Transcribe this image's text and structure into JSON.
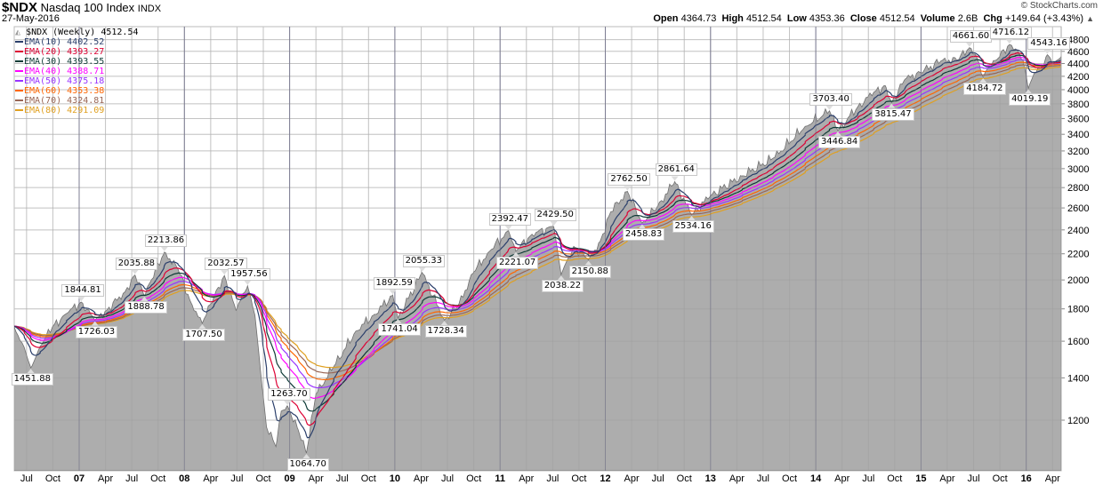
{
  "header": {
    "symbol": "$NDX",
    "name": "Nasdaq 100 Index",
    "exchange": "INDX",
    "date": "27-May-2016",
    "copyright": "© StockCharts.com",
    "open_label": "Open",
    "open": "4364.73",
    "high_label": "High",
    "high": "4512.54",
    "low_label": "Low",
    "low": "4353.36",
    "close_label": "Close",
    "close": "4512.54",
    "volume_label": "Volume",
    "volume": "2.6B",
    "chg_label": "Chg",
    "chg": "+149.64 (+3.43%)",
    "chg_icon": "up-triangle"
  },
  "legend": {
    "price": "$NDX (Weekly) 4512.54",
    "emas": [
      {
        "label": "EMA(10) 4402.52",
        "color": "#2b3f6b",
        "period": 10
      },
      {
        "label": "EMA(20) 4393.27",
        "color": "#dd0033",
        "period": 20
      },
      {
        "label": "EMA(30) 4393.55",
        "color": "#0e3b36",
        "period": 30
      },
      {
        "label": "EMA(40) 4388.71",
        "color": "#ff00ff",
        "period": 40
      },
      {
        "label": "EMA(50) 4375.18",
        "color": "#9933ff",
        "period": 50
      },
      {
        "label": "EMA(60) 4353.38",
        "color": "#ff6600",
        "period": 60
      },
      {
        "label": "EMA(70) 4324.81",
        "color": "#996655",
        "period": 70
      },
      {
        "label": "EMA(80) 4291.09",
        "color": "#e0a020",
        "period": 80
      }
    ]
  },
  "chart_data": {
    "type": "area",
    "title": "$NDX Nasdaq 100 Index INDX (Weekly)",
    "y_scale": "log",
    "ylim": [
      1000,
      5000
    ],
    "y_ticks": [
      1200,
      1400,
      1600,
      1800,
      2000,
      2200,
      2400,
      2600,
      2800,
      3000,
      3200,
      3400,
      3600,
      3800,
      4000,
      4200,
      4400,
      4600,
      4800
    ],
    "x_start": 2006.5,
    "x_step": 0.25,
    "x_ticks": [
      "Jul",
      "Oct",
      "07",
      "Apr",
      "Jul",
      "Oct",
      "08",
      "Apr",
      "Jul",
      "Oct",
      "09",
      "Apr",
      "Jul",
      "Oct",
      "10",
      "Apr",
      "Jul",
      "Oct",
      "11",
      "Apr",
      "Jul",
      "Oct",
      "12",
      "Apr",
      "Jul",
      "Oct",
      "13",
      "Apr",
      "Jul",
      "Oct",
      "14",
      "Apr",
      "Jul",
      "Oct",
      "15",
      "Apr",
      "Jul",
      "Oct",
      "16",
      "Apr"
    ],
    "fill_color": "#adadad",
    "series_anchors": [
      [
        2006.38,
        1690
      ],
      [
        2006.48,
        1560
      ],
      [
        2006.63,
        1570
      ],
      [
        2006.75,
        1690
      ],
      [
        2006.88,
        1770
      ],
      [
        2007.26,
        1790
      ],
      [
        2007.43,
        1910
      ],
      [
        2007.68,
        1990
      ],
      [
        2007.94,
        2080
      ],
      [
        2008.07,
        1830
      ],
      [
        2008.28,
        1880
      ],
      [
        2008.49,
        1790
      ],
      [
        2008.67,
        1760
      ],
      [
        2008.74,
        1350
      ],
      [
        2008.78,
        1170
      ],
      [
        2008.87,
        1090
      ],
      [
        2008.92,
        1240
      ],
      [
        2009.08,
        1160
      ],
      [
        2009.25,
        1320
      ],
      [
        2009.42,
        1460
      ],
      [
        2009.63,
        1660
      ],
      [
        2009.8,
        1760
      ],
      [
        2010.6,
        1820
      ],
      [
        2010.75,
        2060
      ],
      [
        2010.9,
        2220
      ],
      [
        2011.3,
        2360
      ],
      [
        2011.7,
        2260
      ],
      [
        2011.95,
        2300
      ],
      [
        2012.05,
        2560
      ],
      [
        2012.5,
        2620
      ],
      [
        2013.0,
        2720
      ],
      [
        2013.3,
        2920
      ],
      [
        2013.6,
        3120
      ],
      [
        2013.9,
        3500
      ],
      [
        2014.4,
        3760
      ],
      [
        2014.55,
        3960
      ],
      [
        2014.66,
        4060
      ],
      [
        2014.85,
        4160
      ],
      [
        2015.0,
        4260
      ],
      [
        2015.2,
        4450
      ],
      [
        2015.35,
        4460
      ],
      [
        2015.52,
        4540
      ],
      [
        2015.65,
        4350
      ],
      [
        2015.72,
        4460
      ],
      [
        2015.9,
        4640
      ],
      [
        2015.97,
        4450
      ],
      [
        2016.08,
        4260
      ],
      [
        2016.15,
        4350
      ],
      [
        2016.27,
        4420
      ],
      [
        2016.33,
        4512.54
      ]
    ],
    "annotations": [
      {
        "t": 2006.54,
        "value": 1451.88,
        "label": "1451.88",
        "pos": "below"
      },
      {
        "t": 2007.02,
        "value": 1844.81,
        "label": "1844.81",
        "pos": "above"
      },
      {
        "t": 2007.15,
        "value": 1726.03,
        "label": "1726.03",
        "pos": "below"
      },
      {
        "t": 2007.53,
        "value": 2035.88,
        "label": "2035.88",
        "pos": "above"
      },
      {
        "t": 2007.62,
        "value": 1888.78,
        "label": "1888.78",
        "pos": "below"
      },
      {
        "t": 2007.81,
        "value": 2213.86,
        "label": "2213.86",
        "pos": "above"
      },
      {
        "t": 2008.17,
        "value": 1707.5,
        "label": "1707.50",
        "pos": "below"
      },
      {
        "t": 2008.38,
        "value": 2032.57,
        "label": "2032.57",
        "pos": "above"
      },
      {
        "t": 2008.6,
        "value": 1957.56,
        "label": "1957.56",
        "pos": "above"
      },
      {
        "t": 2008.98,
        "value": 1263.7,
        "label": "1263.70",
        "pos": "above"
      },
      {
        "t": 2009.16,
        "value": 1064.7,
        "label": "1064.70",
        "pos": "below"
      },
      {
        "t": 2009.98,
        "value": 1892.59,
        "label": "1892.59",
        "pos": "above"
      },
      {
        "t": 2010.03,
        "value": 1741.04,
        "label": "1741.04",
        "pos": "below"
      },
      {
        "t": 2010.26,
        "value": 2055.33,
        "label": "2055.33",
        "pos": "above"
      },
      {
        "t": 2010.47,
        "value": 1728.34,
        "label": "1728.34",
        "pos": "below"
      },
      {
        "t": 2011.08,
        "value": 2392.47,
        "label": "2392.47",
        "pos": "above"
      },
      {
        "t": 2011.15,
        "value": 2221.07,
        "label": "2221.07",
        "pos": "below"
      },
      {
        "t": 2011.51,
        "value": 2429.5,
        "label": "2429.50",
        "pos": "above"
      },
      {
        "t": 2011.58,
        "value": 2038.22,
        "label": "2038.22",
        "pos": "below"
      },
      {
        "t": 2011.84,
        "value": 2150.88,
        "label": "2150.88",
        "pos": "below"
      },
      {
        "t": 2012.21,
        "value": 2762.5,
        "label": "2762.50",
        "pos": "above"
      },
      {
        "t": 2012.35,
        "value": 2458.83,
        "label": "2458.83",
        "pos": "below"
      },
      {
        "t": 2012.66,
        "value": 2861.64,
        "label": "2861.64",
        "pos": "above"
      },
      {
        "t": 2012.82,
        "value": 2534.16,
        "label": "2534.16",
        "pos": "below"
      },
      {
        "t": 2014.13,
        "value": 3703.4,
        "label": "3703.40",
        "pos": "above"
      },
      {
        "t": 2014.21,
        "value": 3446.84,
        "label": "3446.84",
        "pos": "below"
      },
      {
        "t": 2014.72,
        "value": 3815.47,
        "label": "3815.47",
        "pos": "below"
      },
      {
        "t": 2015.46,
        "value": 4661.6,
        "label": "4661.60",
        "pos": "above"
      },
      {
        "t": 2015.59,
        "value": 4184.72,
        "label": "4184.72",
        "pos": "below"
      },
      {
        "t": 2015.84,
        "value": 4716.12,
        "label": "4716.12",
        "pos": "above"
      },
      {
        "t": 2016.02,
        "value": 4019.19,
        "label": "4019.19",
        "pos": "below"
      },
      {
        "t": 2016.2,
        "value": 4543.16,
        "label": "4543.16",
        "pos": "above"
      }
    ]
  }
}
